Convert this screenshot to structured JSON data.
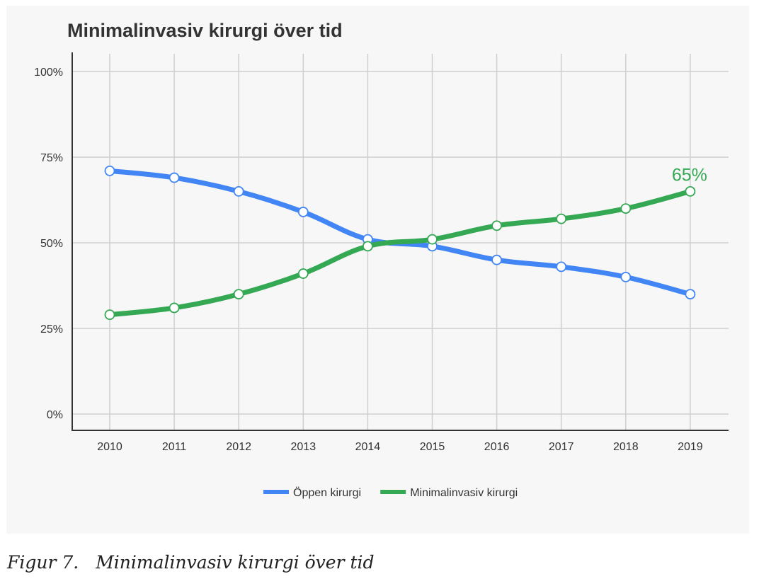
{
  "figure": {
    "caption_number": "Figur 7.",
    "caption_text": "Minimalinvasiv kirurgi över tid"
  },
  "chart_data": {
    "type": "line",
    "title": "Minimalinvasiv kirurgi över tid",
    "xlabel": "",
    "ylabel": "",
    "categories": [
      "2010",
      "2011",
      "2012",
      "2013",
      "2014",
      "2015",
      "2016",
      "2017",
      "2018",
      "2019"
    ],
    "y_ticks": [
      "0%",
      "25%",
      "50%",
      "75%",
      "100%"
    ],
    "ylim": [
      0,
      100
    ],
    "grid": true,
    "legend_position": "bottom",
    "series": [
      {
        "name": "Öppen kirurgi",
        "color": "#4285f4",
        "values": [
          71,
          69,
          65,
          59,
          51,
          49,
          45,
          43,
          40,
          35
        ]
      },
      {
        "name": "Minimalinvasiv kirurgi",
        "color": "#34a853",
        "values": [
          29,
          31,
          35,
          41,
          49,
          51,
          55,
          57,
          60,
          65
        ]
      }
    ],
    "annotations": [
      {
        "series": 1,
        "category": "2019",
        "text": "65%"
      }
    ]
  }
}
